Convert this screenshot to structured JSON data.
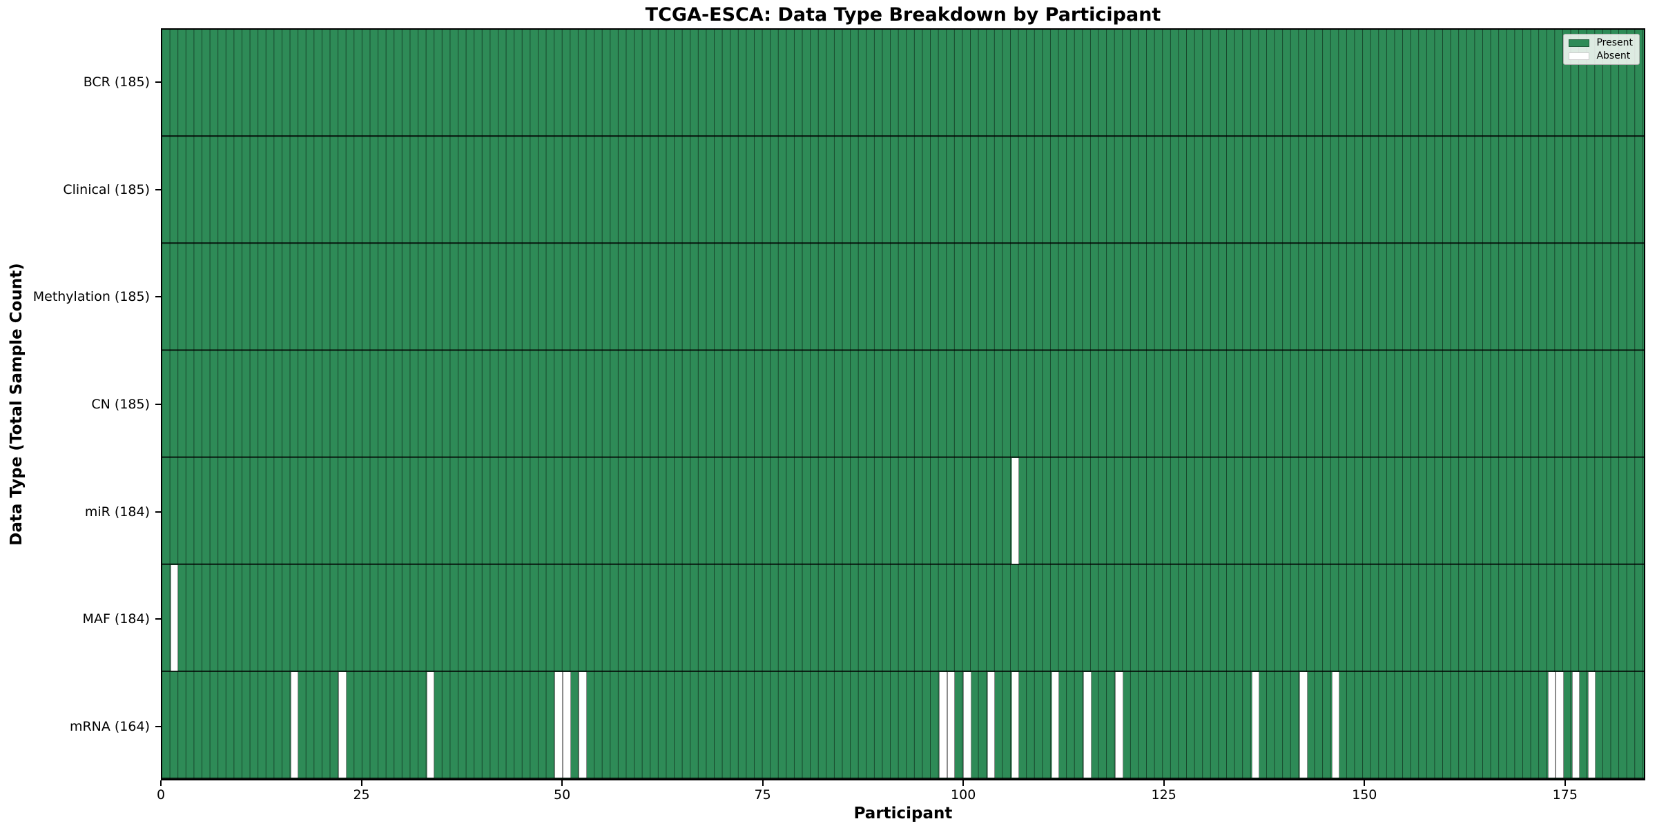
{
  "figure": {
    "title": "TCGA-ESCA: Data Type Breakdown by Participant",
    "x_axis_label": "Participant",
    "y_axis_label": "Data Type (Total Sample Count)"
  },
  "legend": {
    "entries": [
      {
        "id": "present",
        "label": "Present",
        "color": "#2e8b57"
      },
      {
        "id": "absent",
        "label": "Absent",
        "color": "#ffffff"
      }
    ]
  },
  "chart_data": {
    "type": "heatmap",
    "title": "TCGA-ESCA: Data Type Breakdown by Participant",
    "xlabel": "Participant",
    "ylabel": "Data Type (Total Sample Count)",
    "n_participants": 185,
    "xlim": [
      0,
      185
    ],
    "x_ticks": [
      0,
      25,
      50,
      75,
      100,
      125,
      150,
      175
    ],
    "grid": true,
    "legend_position": "upper right",
    "colors": {
      "present": "#2e8b57",
      "absent": "#ffffff",
      "cell_edge": "rgba(0,0,0,0.50)",
      "row_divider": "#000000"
    },
    "rows": [
      {
        "label": "BCR (185)",
        "data_type": "BCR",
        "total": 185,
        "absent_participants": []
      },
      {
        "label": "Clinical (185)",
        "data_type": "Clinical",
        "total": 185,
        "absent_participants": []
      },
      {
        "label": "Methylation (185)",
        "data_type": "Methylation",
        "total": 185,
        "absent_participants": []
      },
      {
        "label": "CN (185)",
        "data_type": "CN",
        "total": 185,
        "absent_participants": []
      },
      {
        "label": "miR (184)",
        "data_type": "miR",
        "total": 184,
        "absent_participants": [
          106
        ]
      },
      {
        "label": "MAF (184)",
        "data_type": "MAF",
        "total": 184,
        "absent_participants": [
          1
        ]
      },
      {
        "label": "mRNA (164)",
        "data_type": "mRNA",
        "total": 164,
        "absent_participants": [
          16,
          22,
          33,
          49,
          50,
          52,
          97,
          98,
          100,
          103,
          106,
          111,
          115,
          119,
          136,
          142,
          146,
          173,
          174,
          176,
          178
        ]
      }
    ]
  }
}
